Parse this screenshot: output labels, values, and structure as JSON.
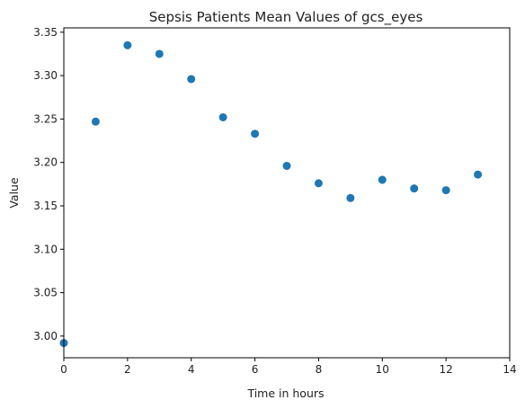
{
  "chart_data": {
    "type": "scatter",
    "title": "Sepsis Patients Mean Values of gcs_eyes",
    "xlabel": "Time in hours",
    "ylabel": "Value",
    "xlim": [
      0,
      14
    ],
    "ylim": [
      2.975,
      3.355
    ],
    "xticks": [
      0,
      2,
      4,
      6,
      8,
      10,
      12,
      14
    ],
    "yticks": [
      3.0,
      3.05,
      3.1,
      3.15,
      3.2,
      3.25,
      3.3,
      3.35
    ],
    "ytick_labels": [
      "3.00",
      "3.05",
      "3.10",
      "3.15",
      "3.20",
      "3.25",
      "3.30",
      "3.35"
    ],
    "grid": false,
    "legend": "none",
    "marker_color": "#1f77b4",
    "points": [
      {
        "x": 0,
        "y": 2.992
      },
      {
        "x": 1,
        "y": 3.247
      },
      {
        "x": 2,
        "y": 3.335
      },
      {
        "x": 3,
        "y": 3.325
      },
      {
        "x": 4,
        "y": 3.296
      },
      {
        "x": 5,
        "y": 3.252
      },
      {
        "x": 6,
        "y": 3.233
      },
      {
        "x": 7,
        "y": 3.196
      },
      {
        "x": 8,
        "y": 3.176
      },
      {
        "x": 9,
        "y": 3.159
      },
      {
        "x": 10,
        "y": 3.18
      },
      {
        "x": 11,
        "y": 3.17
      },
      {
        "x": 12,
        "y": 3.168
      },
      {
        "x": 13,
        "y": 3.186
      }
    ]
  }
}
